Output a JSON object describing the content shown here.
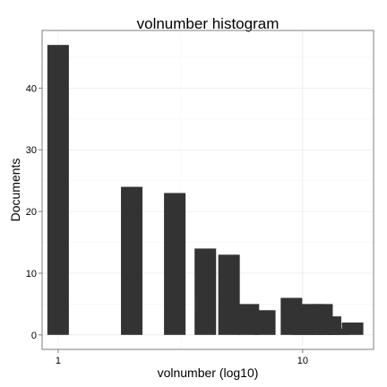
{
  "chart_data": {
    "type": "bar",
    "title": "volnumber histogram",
    "xlabel": "volnumber (log10)",
    "ylabel": "Documents",
    "x_scale": "log10",
    "xlim": [
      0.86,
      19.5
    ],
    "ylim": [
      -2.35,
      49.35
    ],
    "y_ticks": [
      0,
      10,
      20,
      30,
      40
    ],
    "x_ticks": [
      1,
      10
    ],
    "grid": true,
    "legend": "none",
    "x": [
      1,
      2,
      3,
      4,
      5,
      6,
      7,
      9,
      10,
      11,
      12,
      13,
      16
    ],
    "values": [
      47,
      24,
      23,
      14,
      13,
      5,
      4,
      6,
      4,
      5,
      5,
      3,
      2
    ],
    "extra_bars": [
      {
        "x": 14,
        "value": 1
      }
    ],
    "bar_color": "#333333"
  }
}
